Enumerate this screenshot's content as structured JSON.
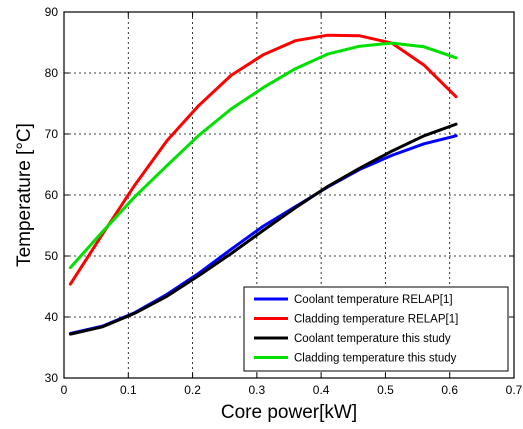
{
  "chart_data": {
    "type": "line",
    "xlabel": "Core power[kW]",
    "ylabel": "Temperature [°C]",
    "xlim": [
      0,
      0.7
    ],
    "ylim": [
      30,
      90
    ],
    "xticks": [
      0,
      0.1,
      0.2,
      0.3,
      0.4,
      0.5,
      0.6,
      0.7
    ],
    "yticks": [
      30,
      40,
      50,
      60,
      70,
      80,
      90
    ],
    "xtick_labels": [
      "0",
      "0.1",
      "0.2",
      "0.3",
      "0.4",
      "0.5",
      "0.6",
      "0.7"
    ],
    "ytick_labels": [
      "30",
      "40",
      "50",
      "60",
      "70",
      "80",
      "90"
    ],
    "grid": true,
    "legend_position": "bottom-right",
    "series": [
      {
        "name": "Coolant temperature RELAP[1]",
        "color": "#0000ff",
        "x": [
          0.01,
          0.06,
          0.11,
          0.16,
          0.21,
          0.26,
          0.31,
          0.36,
          0.41,
          0.46,
          0.51,
          0.56,
          0.61
        ],
        "y": [
          37.3,
          38.5,
          40.7,
          43.7,
          47.2,
          51.1,
          54.9,
          58.1,
          61.3,
          64.2,
          66.5,
          68.4,
          69.7
        ]
      },
      {
        "name": "Cladding temperature RELAP[1]",
        "color": "#ff0000",
        "x": [
          0.01,
          0.06,
          0.11,
          0.16,
          0.21,
          0.26,
          0.31,
          0.36,
          0.41,
          0.46,
          0.51,
          0.56,
          0.61
        ],
        "y": [
          45.4,
          53.6,
          61.6,
          68.9,
          74.7,
          79.6,
          83.0,
          85.3,
          86.2,
          86.1,
          84.9,
          81.3,
          76.1
        ]
      },
      {
        "name": "Coolant temperature this study",
        "color": "#000000",
        "x": [
          0.01,
          0.06,
          0.11,
          0.16,
          0.21,
          0.26,
          0.31,
          0.36,
          0.41,
          0.46,
          0.51,
          0.56,
          0.61
        ],
        "y": [
          37.2,
          38.4,
          40.6,
          43.4,
          46.8,
          50.4,
          54.2,
          57.9,
          61.4,
          64.4,
          67.2,
          69.7,
          71.6
        ]
      },
      {
        "name": "Cladding temperature this study",
        "color": "#00e000",
        "x": [
          0.01,
          0.06,
          0.11,
          0.16,
          0.21,
          0.26,
          0.31,
          0.36,
          0.41,
          0.46,
          0.51,
          0.56,
          0.61
        ],
        "y": [
          48.1,
          54.0,
          59.7,
          64.8,
          69.8,
          74.1,
          77.6,
          80.7,
          83.1,
          84.4,
          84.9,
          84.3,
          82.5
        ]
      }
    ]
  }
}
